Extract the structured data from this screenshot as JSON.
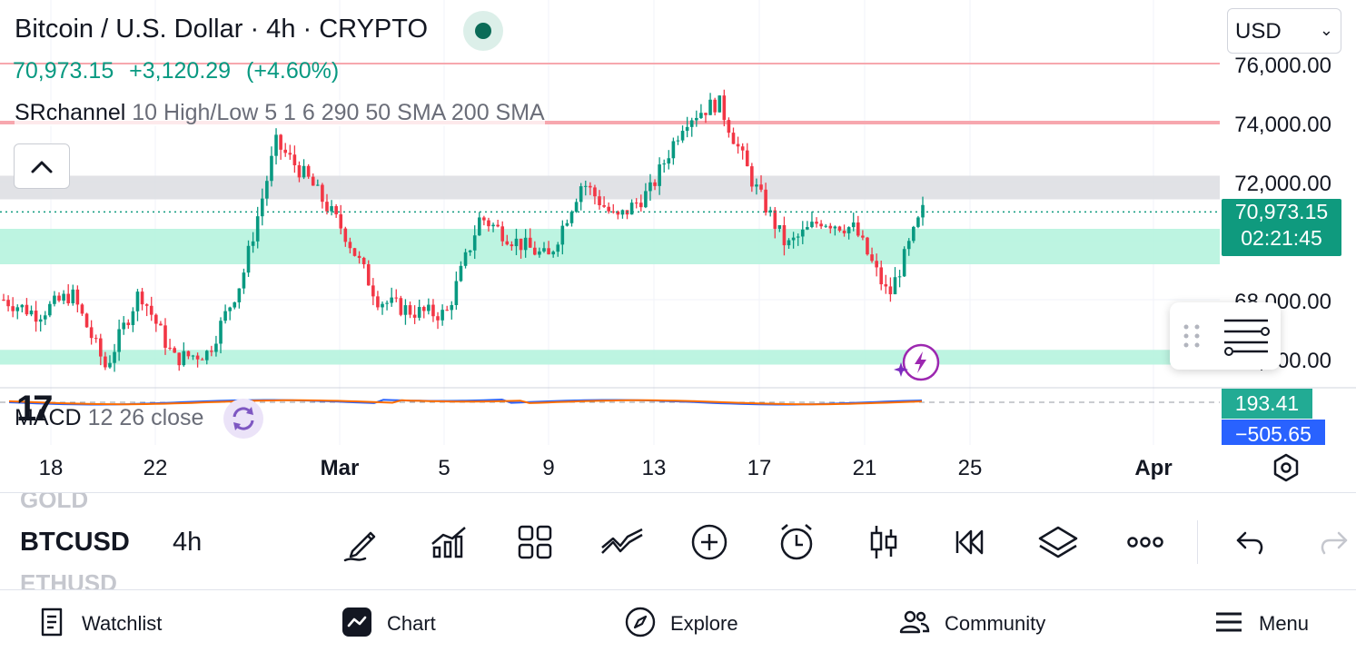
{
  "header": {
    "title": "Bitcoin / U.S. Dollar · 4h · CRYPTO",
    "price_change": [
      "70,973.15",
      "+3,120.29",
      "(+4.60%)"
    ],
    "indicator_name": "SRchannel",
    "indicator_params": "10 High/Low 5 1 6 290 50 SMA 200 SMA"
  },
  "currency": {
    "value": "USD"
  },
  "price_axis": {
    "labels": [
      "76,000.00",
      "74,000.00",
      "72,000.00",
      "68,000.00",
      "66,000.00"
    ],
    "last_price": "70,973.15",
    "countdown": "02:21:45",
    "macd_value": "193.41",
    "signal_value": "−505.65"
  },
  "macd": {
    "name": "MACD",
    "params": "12 26 close"
  },
  "time_axis": {
    "labels": [
      "18",
      "22",
      "Mar",
      "5",
      "9",
      "13",
      "17",
      "21",
      "25",
      "Apr"
    ]
  },
  "toolbar": {
    "symbols_above": "GOLD",
    "current_symbol": "BTCUSD",
    "interval": "4h",
    "symbols_below": "ETHUSD",
    "icons": [
      "pencil-icon",
      "indicators-icon",
      "layout-grid-icon",
      "compare-icon",
      "add-icon",
      "alert-clock-icon",
      "candle-style-icon",
      "replay-icon",
      "layers-icon",
      "more-icon",
      "undo-icon",
      "redo-icon"
    ]
  },
  "nav": {
    "watchlist": "Watchlist",
    "chart": "Chart",
    "explore": "Explore",
    "community": "Community",
    "menu": "Menu"
  },
  "colors": {
    "up": "#089981",
    "down": "#f23645",
    "support_zone": "#b2f2dc",
    "resistance_zone": "#dcdde2",
    "resistance_line": "#f7a7ae",
    "macd_line": "#2962ff",
    "signal_line": "#ff6d00"
  },
  "chart_data": {
    "type": "candlestick",
    "symbol": "BTCUSD",
    "interval": "4h",
    "ylim": [
      65200,
      76300
    ],
    "ohlc_approx": [
      {
        "date": "Feb 17",
        "o": 68600,
        "h": 69300,
        "l": 67600,
        "c": 68000
      },
      {
        "date": "Feb 20",
        "o": 67400,
        "h": 68100,
        "l": 66600,
        "c": 67500
      },
      {
        "date": "Feb 22",
        "o": 68100,
        "h": 68500,
        "l": 67700,
        "c": 68200
      },
      {
        "date": "Feb 24",
        "o": 66700,
        "h": 67200,
        "l": 65400,
        "c": 65700
      },
      {
        "date": "Feb 26",
        "o": 68300,
        "h": 69500,
        "l": 67400,
        "c": 68300
      },
      {
        "date": "Feb 28",
        "o": 66300,
        "h": 66900,
        "l": 65600,
        "c": 66000
      },
      {
        "date": "Mar 2",
        "o": 66300,
        "h": 67000,
        "l": 65700,
        "c": 66200
      },
      {
        "date": "Mar 3",
        "o": 68800,
        "h": 69500,
        "l": 68100,
        "c": 68700
      },
      {
        "date": "Mar 4",
        "o": 70300,
        "h": 73800,
        "l": 70000,
        "c": 73300
      },
      {
        "date": "Mar 5",
        "o": 72700,
        "h": 73400,
        "l": 72000,
        "c": 72000
      },
      {
        "date": "Mar 6",
        "o": 70400,
        "h": 71400,
        "l": 69900,
        "c": 70300
      },
      {
        "date": "Mar 7",
        "o": 68300,
        "h": 68700,
        "l": 67700,
        "c": 68000
      },
      {
        "date": "Mar 8",
        "o": 67600,
        "h": 68100,
        "l": 67200,
        "c": 67600
      },
      {
        "date": "Mar 9",
        "o": 66800,
        "h": 67800,
        "l": 66000,
        "c": 67500
      },
      {
        "date": "Mar 10",
        "o": 69000,
        "h": 71800,
        "l": 68800,
        "c": 70800
      },
      {
        "date": "Mar 11",
        "o": 70300,
        "h": 71000,
        "l": 69600,
        "c": 70000
      },
      {
        "date": "Mar 12",
        "o": 69800,
        "h": 70500,
        "l": 69100,
        "c": 69400
      },
      {
        "date": "Mar 13",
        "o": 71300,
        "h": 73800,
        "l": 70800,
        "c": 72000
      },
      {
        "date": "Mar 14",
        "o": 71100,
        "h": 71700,
        "l": 70400,
        "c": 70700
      },
      {
        "date": "Mar 15",
        "o": 71600,
        "h": 72300,
        "l": 71100,
        "c": 71700
      },
      {
        "date": "Mar 16",
        "o": 73000,
        "h": 74500,
        "l": 72700,
        "c": 74100
      },
      {
        "date": "Mar 17",
        "o": 74300,
        "h": 76000,
        "l": 73800,
        "c": 74700
      },
      {
        "date": "Mar 18",
        "o": 73900,
        "h": 74500,
        "l": 71700,
        "c": 72000
      },
      {
        "date": "Mar 19",
        "o": 70800,
        "h": 71500,
        "l": 69200,
        "c": 69800
      },
      {
        "date": "Mar 20",
        "o": 70300,
        "h": 71300,
        "l": 69900,
        "c": 70700
      },
      {
        "date": "Mar 21",
        "o": 70800,
        "h": 71100,
        "l": 70100,
        "c": 70400
      },
      {
        "date": "Mar 22",
        "o": 68500,
        "h": 68900,
        "l": 67600,
        "c": 68100
      },
      {
        "date": "Mar 23",
        "o": 68100,
        "h": 71500,
        "l": 67800,
        "c": 71000
      }
    ],
    "zones": [
      {
        "kind": "resistance",
        "from": 71400,
        "to": 72200
      },
      {
        "kind": "support",
        "from": 69200,
        "to": 70400
      },
      {
        "kind": "support",
        "from": 65800,
        "to": 66300
      }
    ],
    "lines": [
      76000,
      74000
    ],
    "last_price": 70973.15
  }
}
